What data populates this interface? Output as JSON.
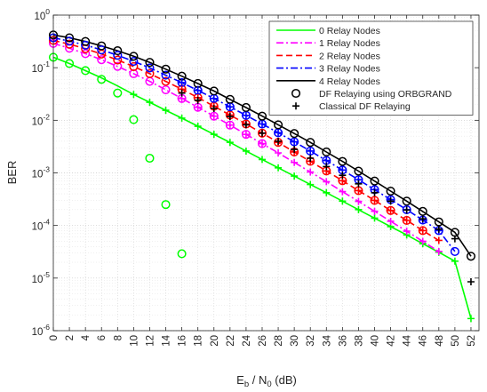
{
  "chart_data": {
    "type": "line",
    "title": "",
    "xlabel": {
      "main": "E",
      "sub_b": "b",
      "mid": " / N",
      "sub_0": "0",
      "unit": " (dB)"
    },
    "ylabel": "BER",
    "xlim": [
      0,
      53
    ],
    "ylim": [
      1e-06,
      1
    ],
    "yscale": "log",
    "grid": true,
    "legend_position": "top-right",
    "x_ticks": [
      0,
      2,
      4,
      6,
      8,
      10,
      12,
      14,
      16,
      18,
      20,
      22,
      24,
      26,
      28,
      30,
      32,
      34,
      36,
      38,
      40,
      42,
      44,
      46,
      48,
      50,
      52
    ],
    "y_tick_exponents": [
      -6,
      -5,
      -4,
      -3,
      -2,
      -1,
      0
    ],
    "y_tick_base": "10",
    "series": [
      {
        "name": "0 Relay Nodes",
        "color": "#00ff00",
        "dash": "solid",
        "x": [
          0,
          2,
          4,
          6,
          8,
          10,
          12,
          14,
          16,
          18,
          20,
          22,
          24,
          26,
          28,
          30,
          32,
          34,
          36,
          38,
          40,
          42,
          44,
          46,
          48,
          50,
          52
        ],
        "y": [
          0.158,
          0.12,
          0.088,
          0.064,
          0.045,
          0.031,
          0.022,
          0.0155,
          0.011,
          0.0077,
          0.0054,
          0.0038,
          0.0026,
          0.0018,
          0.00125,
          0.00087,
          0.0006,
          0.00042,
          0.00029,
          0.0002,
          0.000138,
          9.5e-05,
          6.6e-05,
          4.5e-05,
          3.1e-05,
          2.1e-05,
          1.7e-06
        ]
      },
      {
        "name": "1 Relay Nodes",
        "color": "#ff00ff",
        "dash": "dashdot",
        "x": [
          0,
          2,
          4,
          6,
          8,
          10,
          12,
          14,
          16,
          18,
          20,
          22,
          24,
          26,
          28,
          30,
          32,
          34,
          36,
          38,
          40,
          42,
          44,
          46,
          48
        ],
        "y": [
          0.29,
          0.235,
          0.185,
          0.142,
          0.106,
          0.077,
          0.055,
          0.038,
          0.026,
          0.0177,
          0.012,
          0.0081,
          0.0054,
          0.0036,
          0.0024,
          0.00158,
          0.00104,
          0.00068,
          0.00044,
          0.000287,
          0.000186,
          0.00012,
          7.8e-05,
          5e-05,
          3.2e-05
        ]
      },
      {
        "name": "2 Relay Nodes",
        "color": "#ff0000",
        "dash": "dashed",
        "x": [
          0,
          2,
          4,
          6,
          8,
          10,
          12,
          14,
          16,
          18,
          20,
          22,
          24,
          26,
          28,
          30,
          32,
          34,
          36,
          38,
          40,
          42,
          44,
          46,
          48
        ],
        "y": [
          0.33,
          0.28,
          0.23,
          0.182,
          0.14,
          0.105,
          0.077,
          0.055,
          0.039,
          0.027,
          0.0185,
          0.0126,
          0.0085,
          0.0057,
          0.0038,
          0.0025,
          0.00166,
          0.00109,
          0.00071,
          0.00046,
          0.0003,
          0.000193,
          0.000125,
          8e-05,
          5.2e-05
        ]
      },
      {
        "name": "3 Relay Nodes",
        "color": "#0000ff",
        "dash": "dashdot",
        "x": [
          0,
          2,
          4,
          6,
          8,
          10,
          12,
          14,
          16,
          18,
          20,
          22,
          24,
          26,
          28,
          30,
          32,
          34,
          36,
          38,
          40,
          42,
          44,
          46,
          48,
          50
        ],
        "y": [
          0.37,
          0.32,
          0.268,
          0.218,
          0.172,
          0.132,
          0.099,
          0.072,
          0.052,
          0.037,
          0.026,
          0.018,
          0.0124,
          0.0085,
          0.0058,
          0.0039,
          0.0026,
          0.00172,
          0.00113,
          0.00074,
          0.00048,
          0.00031,
          0.000199,
          0.000127,
          8e-05,
          3.2e-05
        ]
      },
      {
        "name": "4 Relay Nodes",
        "color": "#000000",
        "dash": "solid",
        "x": [
          0,
          2,
          4,
          6,
          8,
          10,
          12,
          14,
          16,
          18,
          20,
          22,
          24,
          26,
          28,
          30,
          32,
          34,
          36,
          38,
          40,
          42,
          44,
          46,
          48,
          50,
          52
        ],
        "y": [
          0.42,
          0.37,
          0.315,
          0.26,
          0.21,
          0.165,
          0.126,
          0.094,
          0.069,
          0.05,
          0.036,
          0.025,
          0.0175,
          0.012,
          0.0082,
          0.0056,
          0.0038,
          0.0025,
          0.00165,
          0.00108,
          0.0007,
          0.00045,
          0.00029,
          0.000185,
          0.000117,
          7.4e-05,
          2.6e-05
        ]
      }
    ],
    "orbgrand_markers": [
      {
        "series": "0 Relay Nodes",
        "color": "#00ff00",
        "x": [
          0,
          2,
          4,
          6,
          8,
          10,
          12,
          14,
          16
        ],
        "y": [
          0.158,
          0.12,
          0.088,
          0.06,
          0.033,
          0.0103,
          0.0019,
          0.00025,
          2.9e-05
        ]
      },
      {
        "series": "1 Relay Nodes",
        "color": "#ff00ff",
        "x": [
          0,
          2,
          4,
          6,
          8,
          10,
          12,
          14,
          16,
          18,
          20,
          22,
          24,
          26
        ],
        "y": [
          0.29,
          0.235,
          0.185,
          0.142,
          0.106,
          0.077,
          0.055,
          0.038,
          0.026,
          0.0177,
          0.012,
          0.0081,
          0.0054,
          0.0036
        ]
      },
      {
        "series": "2 Relay Nodes",
        "color": "#ff0000",
        "x": [
          0,
          2,
          4,
          6,
          8,
          10,
          12,
          14,
          16,
          18,
          20,
          22,
          24,
          26,
          28,
          30,
          32,
          34,
          36,
          38,
          40,
          42,
          44,
          46
        ],
        "y": [
          0.33,
          0.28,
          0.23,
          0.182,
          0.14,
          0.105,
          0.077,
          0.055,
          0.039,
          0.027,
          0.0185,
          0.0126,
          0.0085,
          0.0057,
          0.0038,
          0.0025,
          0.00166,
          0.00109,
          0.00071,
          0.00046,
          0.0003,
          0.000193,
          0.000125,
          8e-05
        ]
      },
      {
        "series": "3 Relay Nodes",
        "color": "#0000ff",
        "x": [
          0,
          2,
          4,
          6,
          8,
          10,
          12,
          14,
          16,
          18,
          20,
          22,
          24,
          26,
          28,
          30,
          32,
          34,
          36,
          38,
          40,
          42,
          44,
          46,
          48,
          50
        ],
        "y": [
          0.37,
          0.32,
          0.268,
          0.218,
          0.172,
          0.132,
          0.099,
          0.072,
          0.052,
          0.037,
          0.026,
          0.018,
          0.0124,
          0.0085,
          0.0058,
          0.0039,
          0.0026,
          0.00172,
          0.00113,
          0.00074,
          0.00048,
          0.00031,
          0.000199,
          0.000127,
          8e-05,
          3.2e-05
        ]
      },
      {
        "series": "4 Relay Nodes",
        "color": "#000000",
        "x": [
          0,
          2,
          4,
          6,
          8,
          10,
          12,
          14,
          16,
          18,
          20,
          22,
          24,
          26,
          28,
          30,
          32,
          34,
          36,
          38,
          40,
          42,
          44,
          46,
          48,
          50,
          52
        ],
        "y": [
          0.42,
          0.37,
          0.315,
          0.26,
          0.21,
          0.165,
          0.126,
          0.094,
          0.069,
          0.05,
          0.036,
          0.025,
          0.0175,
          0.012,
          0.0082,
          0.0056,
          0.0038,
          0.0025,
          0.00165,
          0.00108,
          0.0007,
          0.00045,
          0.00029,
          0.000185,
          0.000117,
          7.4e-05,
          2.6e-05
        ]
      }
    ],
    "classical_markers": [
      {
        "series": "0 Relay Nodes",
        "color": "#00ff00",
        "x": [
          10,
          12,
          14,
          16,
          18,
          20,
          22,
          24,
          26,
          28,
          30,
          32,
          34,
          36,
          38,
          40,
          42,
          44,
          46,
          48,
          50,
          52
        ],
        "y": [
          0.031,
          0.022,
          0.0155,
          0.011,
          0.0077,
          0.0054,
          0.0038,
          0.0026,
          0.0018,
          0.00125,
          0.00087,
          0.0006,
          0.00042,
          0.00029,
          0.0002,
          0.000138,
          9.5e-05,
          6.6e-05,
          4.5e-05,
          3.1e-05,
          2.1e-05,
          1.7e-06
        ]
      },
      {
        "series": "1 Relay Nodes",
        "color": "#ff00ff",
        "x": [
          16,
          18,
          20,
          22,
          24,
          26,
          28,
          30,
          32,
          34,
          36,
          38,
          40,
          42,
          44,
          46,
          48
        ],
        "y": [
          0.026,
          0.0177,
          0.012,
          0.0081,
          0.0054,
          0.0036,
          0.0024,
          0.00158,
          0.00104,
          0.00068,
          0.00044,
          0.000287,
          0.000186,
          0.00012,
          7.8e-05,
          5e-05,
          3.2e-05
        ]
      },
      {
        "series": "2 Relay Nodes",
        "color": "#ff0000",
        "x": [
          16,
          18,
          20,
          22,
          24,
          26,
          28,
          30,
          32,
          34,
          36,
          38,
          40,
          42,
          44,
          46,
          48
        ],
        "y": [
          0.039,
          0.027,
          0.0185,
          0.0126,
          0.0085,
          0.0057,
          0.0038,
          0.0025,
          0.00166,
          0.00109,
          0.00071,
          0.00046,
          0.0003,
          0.000193,
          0.000125,
          8e-05,
          5.2e-05
        ]
      },
      {
        "series": "3 Relay Nodes",
        "color": "#0000ff",
        "x": [
          16,
          18,
          20,
          22,
          24,
          26,
          28,
          30,
          32,
          34,
          36,
          38,
          40,
          42,
          44,
          46,
          48
        ],
        "y": [
          0.052,
          0.037,
          0.026,
          0.018,
          0.0124,
          0.0085,
          0.0058,
          0.0039,
          0.0026,
          0.00172,
          0.00113,
          0.00074,
          0.00048,
          0.00031,
          0.000199,
          0.000127,
          8e-05
        ]
      },
      {
        "series": "4 Relay Nodes",
        "color": "#000000",
        "x": [
          16,
          18,
          20,
          22,
          24,
          26,
          28,
          30,
          32,
          34,
          36,
          38,
          40,
          42,
          44,
          46,
          48,
          50,
          52
        ],
        "y": [
          0.033,
          0.024,
          0.0168,
          0.0118,
          0.0082,
          0.0057,
          0.004,
          0.0028,
          0.0019,
          0.00132,
          0.0009,
          0.00062,
          0.00042,
          0.00029,
          0.000197,
          0.000134,
          8.5e-05,
          5.6e-05,
          8.5e-06
        ]
      }
    ],
    "legend": [
      {
        "label": "0 Relay Nodes",
        "kind": "line",
        "color": "#00ff00",
        "dash": "solid"
      },
      {
        "label": "1 Relay Nodes",
        "kind": "line",
        "color": "#ff00ff",
        "dash": "dashdot"
      },
      {
        "label": "2 Relay Nodes",
        "kind": "line",
        "color": "#ff0000",
        "dash": "dashed"
      },
      {
        "label": "3 Relay Nodes",
        "kind": "line",
        "color": "#0000ff",
        "dash": "dashdot"
      },
      {
        "label": "4 Relay Nodes",
        "kind": "line",
        "color": "#000000",
        "dash": "solid"
      },
      {
        "label": "DF Relaying using ORBGRAND",
        "kind": "circle",
        "color": "#000000"
      },
      {
        "label": "Classical DF Relaying",
        "kind": "plus",
        "color": "#000000"
      }
    ]
  }
}
